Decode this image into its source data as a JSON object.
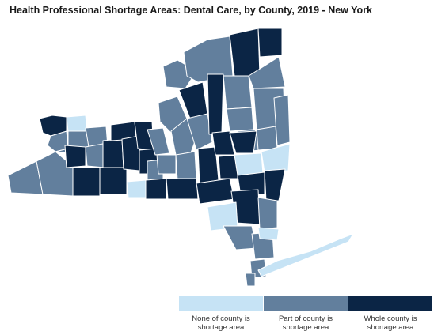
{
  "title": "Health Professional Shortage Areas: Dental Care, by County, 2019 - New York",
  "colors": {
    "none": "#c6e3f5",
    "part": "#627f9d",
    "whole": "#0b2545",
    "border": "#ffffff"
  },
  "legend": [
    {
      "key": "none",
      "label": "None of county is\nshortage area"
    },
    {
      "key": "part",
      "label": "Part of county is\nshortage area"
    },
    {
      "key": "whole",
      "label": "Whole county is\nshortage area"
    }
  ]
}
